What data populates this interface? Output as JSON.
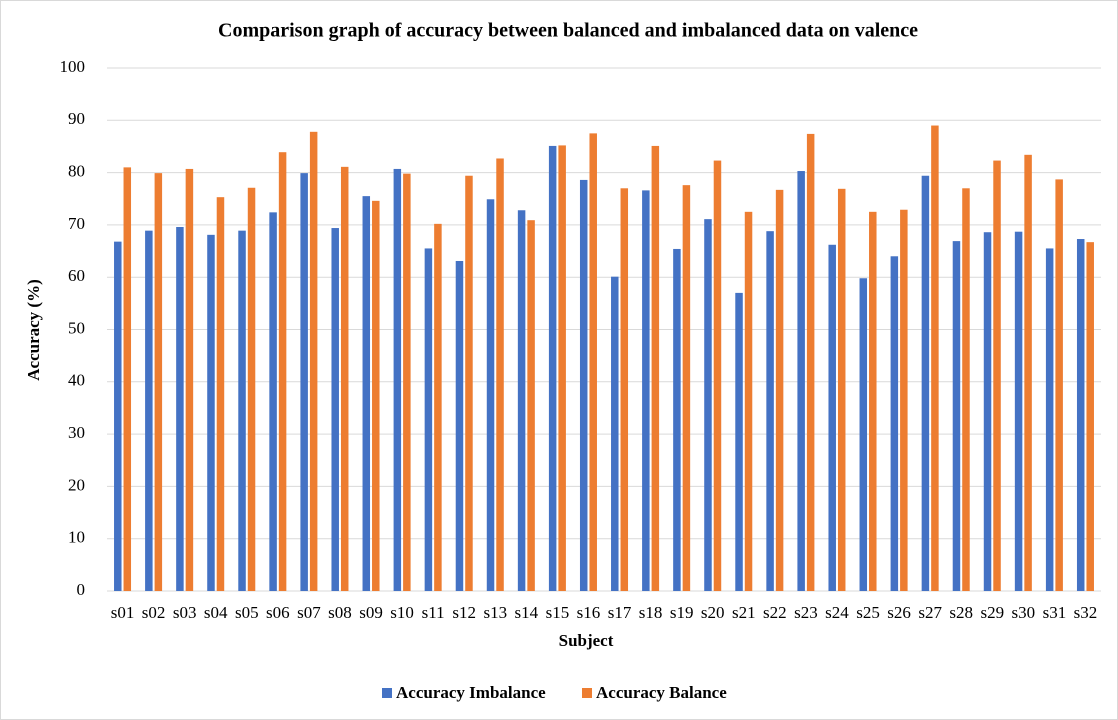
{
  "chart_data": {
    "type": "bar",
    "title": "Comparison graph of accuracy between balanced and imbalanced data on valence",
    "x_label": "Subject",
    "y_label": "Accuracy (%)",
    "categories": [
      "s01",
      "s02",
      "s03",
      "s04",
      "s05",
      "s06",
      "s07",
      "s08",
      "s09",
      "s10",
      "s11",
      "s12",
      "s13",
      "s14",
      "s15",
      "s16",
      "s17",
      "s18",
      "s19",
      "s20",
      "s21",
      "s22",
      "s23",
      "s24",
      "s25",
      "s26",
      "s27",
      "s28",
      "s29",
      "s30",
      "s31",
      "s32"
    ],
    "series": [
      {
        "name": "Accuracy Imbalance",
        "color": "#4472c4",
        "values": [
          66.8,
          68.9,
          69.6,
          68.1,
          68.9,
          72.4,
          79.9,
          69.4,
          75.5,
          80.7,
          65.5,
          63.1,
          74.9,
          72.8,
          85.1,
          78.6,
          60.1,
          76.6,
          65.4,
          71.1,
          57.0,
          68.8,
          80.3,
          66.2,
          59.8,
          64.0,
          79.4,
          66.9,
          68.6,
          68.7,
          65.5,
          67.3
        ]
      },
      {
        "name": "Accuracy Balance",
        "color": "#ed7d31",
        "values": [
          81.0,
          79.9,
          80.7,
          75.3,
          77.1,
          83.9,
          87.8,
          81.1,
          74.6,
          79.8,
          70.2,
          79.4,
          82.7,
          70.9,
          85.2,
          87.5,
          77.0,
          85.1,
          77.6,
          82.3,
          72.5,
          76.7,
          87.4,
          76.9,
          72.5,
          72.9,
          89.0,
          77.0,
          82.3,
          83.4,
          78.7,
          66.7
        ]
      }
    ],
    "ylim": [
      0,
      100
    ],
    "yticks": [
      0,
      10,
      20,
      30,
      40,
      50,
      60,
      70,
      80,
      90,
      100
    ],
    "grid": true,
    "legend": "bottom"
  }
}
